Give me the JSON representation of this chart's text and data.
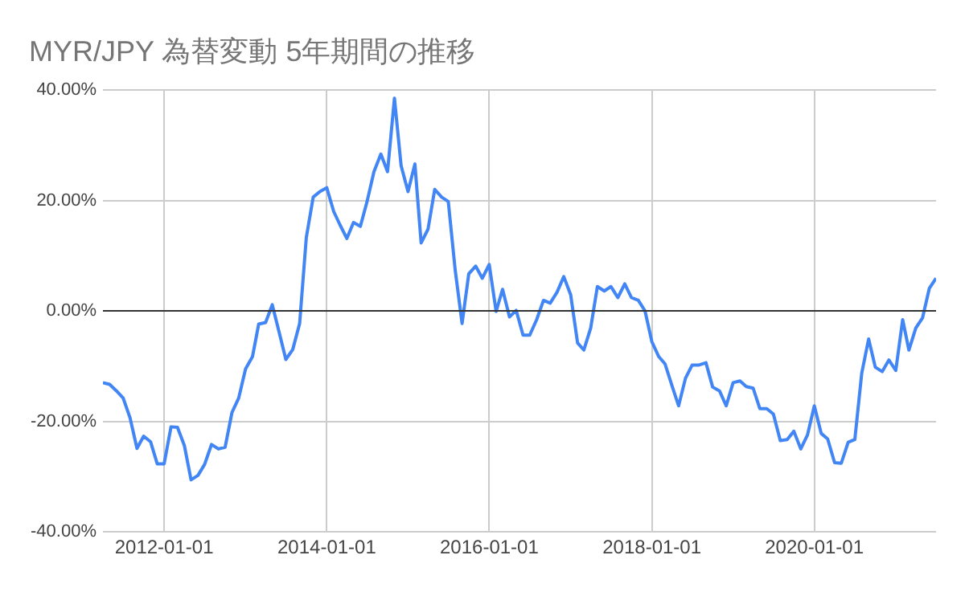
{
  "chart_data": {
    "type": "line",
    "title": "MYR/JPY 為替変動 5年期間の推移",
    "x": [
      "2011-04",
      "2011-05",
      "2011-06",
      "2011-07",
      "2011-08",
      "2011-09",
      "2011-10",
      "2011-11",
      "2011-12",
      "2012-01",
      "2012-02",
      "2012-03",
      "2012-04",
      "2012-05",
      "2012-06",
      "2012-07",
      "2012-08",
      "2012-09",
      "2012-10",
      "2012-11",
      "2012-12",
      "2013-01",
      "2013-02",
      "2013-03",
      "2013-04",
      "2013-05",
      "2013-06",
      "2013-07",
      "2013-08",
      "2013-09",
      "2013-10",
      "2013-11",
      "2013-12",
      "2014-01",
      "2014-02",
      "2014-03",
      "2014-04",
      "2014-05",
      "2014-06",
      "2014-07",
      "2014-08",
      "2014-09",
      "2014-10",
      "2014-11",
      "2014-12",
      "2015-01",
      "2015-02",
      "2015-03",
      "2015-04",
      "2015-05",
      "2015-06",
      "2015-07",
      "2015-08",
      "2015-09",
      "2015-10",
      "2015-11",
      "2015-12",
      "2016-01",
      "2016-02",
      "2016-03",
      "2016-04",
      "2016-05",
      "2016-06",
      "2016-07",
      "2016-08",
      "2016-09",
      "2016-10",
      "2016-11",
      "2016-12",
      "2017-01",
      "2017-02",
      "2017-03",
      "2017-04",
      "2017-05",
      "2017-06",
      "2017-07",
      "2017-08",
      "2017-09",
      "2017-10",
      "2017-11",
      "2017-12",
      "2018-01",
      "2018-02",
      "2018-03",
      "2018-04",
      "2018-05",
      "2018-06",
      "2018-07",
      "2018-08",
      "2018-09",
      "2018-10",
      "2018-11",
      "2018-12",
      "2019-01",
      "2019-02",
      "2019-03",
      "2019-04",
      "2019-05",
      "2019-06",
      "2019-07",
      "2019-08",
      "2019-09",
      "2019-10",
      "2019-11",
      "2019-12",
      "2020-01",
      "2020-02",
      "2020-03",
      "2020-04",
      "2020-05",
      "2020-06",
      "2020-07",
      "2020-08",
      "2020-09",
      "2020-10",
      "2020-11",
      "2020-12",
      "2021-01",
      "2021-02",
      "2021-03",
      "2021-04",
      "2021-05",
      "2021-06",
      "2021-07"
    ],
    "series": [
      {
        "color": "#4285f4",
        "values": [
          -13.0,
          -13.3,
          -14.5,
          -15.8,
          -19.4,
          -24.9,
          -22.7,
          -23.7,
          -27.7,
          -27.7,
          -21.0,
          -21.1,
          -24.4,
          -30.6,
          -29.8,
          -27.8,
          -24.2,
          -25.0,
          -24.7,
          -18.4,
          -15.8,
          -10.5,
          -8.3,
          -2.4,
          -2.1,
          1.1,
          -3.9,
          -8.8,
          -7.0,
          -2.3,
          13.3,
          20.6,
          21.6,
          22.3,
          18.0,
          15.6,
          13.1,
          16.0,
          15.3,
          19.8,
          25.2,
          28.4,
          25.2,
          38.5,
          26.3,
          21.6,
          26.6,
          12.3,
          14.8,
          22.0,
          20.6,
          19.8,
          7.4,
          -2.3,
          6.7,
          8.1,
          5.9,
          8.4,
          -0.1,
          3.9,
          -1.1,
          0.1,
          -4.4,
          -4.4,
          -1.6,
          1.9,
          1.4,
          3.4,
          6.2,
          2.9,
          -5.8,
          -7.1,
          -3.1,
          4.4,
          3.6,
          4.4,
          2.4,
          4.9,
          2.4,
          1.9,
          0.0,
          -5.6,
          -8.3,
          -9.6,
          -13.5,
          -17.2,
          -12.2,
          -9.8,
          -9.8,
          -9.4,
          -13.8,
          -14.5,
          -17.2,
          -13.0,
          -12.7,
          -13.7,
          -14.0,
          -17.7,
          -17.7,
          -18.7,
          -23.5,
          -23.3,
          -21.8,
          -25.0,
          -22.5,
          -17.2,
          -22.2,
          -23.2,
          -27.5,
          -27.6,
          -23.8,
          -23.3,
          -11.3,
          -5.1,
          -10.2,
          -11.0,
          -8.9,
          -10.8,
          -1.6,
          -7.1,
          -3.1,
          -1.3,
          4.1,
          5.9
        ]
      }
    ],
    "xlim": [
      "2011-04-01",
      "2021-07-01"
    ],
    "xticks": [
      "2012-01-01",
      "2014-01-01",
      "2016-01-01",
      "2018-01-01",
      "2020-01-01"
    ],
    "ylim": [
      -40,
      40
    ],
    "yticks": [
      {
        "value": -40,
        "label": "-40.00%"
      },
      {
        "value": -20,
        "label": "-20.00%"
      },
      {
        "value": 0,
        "label": "0.00%"
      },
      {
        "value": 20,
        "label": "20.00%"
      },
      {
        "value": 40,
        "label": "40.00%"
      }
    ],
    "ref_lines": [
      {
        "axis": "y",
        "value": 0,
        "color": "#333333"
      }
    ],
    "grid": true,
    "legend": false,
    "marker": "none",
    "line_style": "solid"
  }
}
